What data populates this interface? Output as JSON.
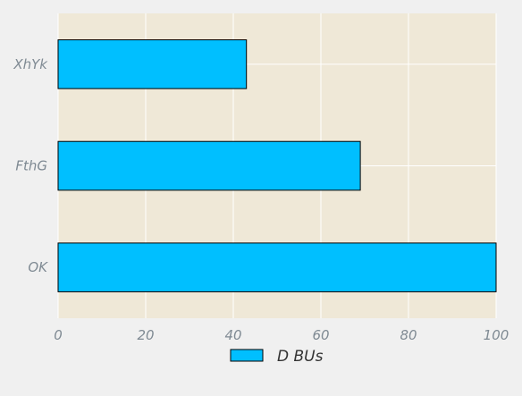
{
  "chart_data": {
    "type": "bar",
    "orientation": "horizontal",
    "categories": [
      "OK",
      "FthG",
      "XhYk"
    ],
    "series": [
      {
        "name": "D BUs",
        "values": [
          100,
          69,
          43
        ]
      }
    ],
    "xlim": [
      0,
      100
    ],
    "xticks": [
      0,
      20,
      40,
      60,
      80,
      100
    ],
    "grid": true,
    "legend_position": "bottom-center",
    "colors": {
      "bar": "#00bfff",
      "bar_edge": "#000000",
      "plot_background": "#efe8d7",
      "figure_background": "#f0f0f0",
      "grid": "#ffffff"
    }
  }
}
